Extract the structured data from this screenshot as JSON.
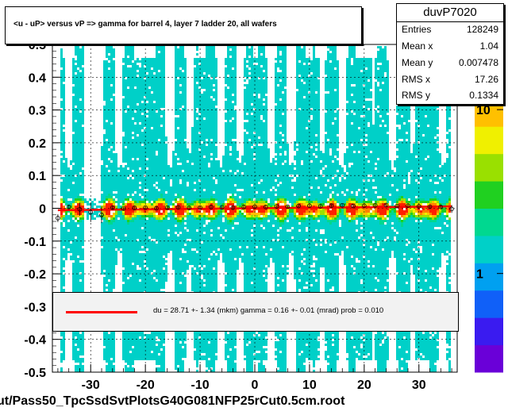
{
  "title": "<u - uP>       versus   vP =>  gamma for barrel 4, layer 7 ladder 20, all wafers",
  "stats": {
    "name": "duvP7020",
    "rows": [
      {
        "key": "Entries",
        "value": "128249"
      },
      {
        "key": "Mean x",
        "value": "1.04"
      },
      {
        "key": "Mean y",
        "value": "0.007478"
      },
      {
        "key": "RMS x",
        "value": "17.26"
      },
      {
        "key": "RMS y",
        "value": "0.1334"
      }
    ]
  },
  "legend": {
    "text": "du =   28.71 +-  1.34 (mkm) gamma =    0.16 +-  0.01 (mrad) prob = 0.010",
    "line_color": "#ff0000"
  },
  "footer": "ut/Pass50_TpcSsdSvtPlotsG40G081NFP25rCut0.5cm.root",
  "colors": {
    "background": "#ffffff",
    "fit_line": "#ff0000",
    "profile_markers": "#000000",
    "palette": [
      "#6a00d8",
      "#3a1bf0",
      "#1060f8",
      "#00a0f0",
      "#00d0c8",
      "#00d890",
      "#20d020",
      "#9ae000",
      "#f0f000",
      "#ffc000",
      "#ff8000",
      "#ff2000"
    ]
  },
  "chart_data": {
    "type": "heatmap",
    "x_axis": {
      "range": [
        -37,
        37
      ],
      "ticks": [
        -30,
        -20,
        -10,
        0,
        10,
        20,
        30
      ]
    },
    "y_axis": {
      "range": [
        -0.5,
        0.5
      ],
      "ticks": [
        -0.5,
        -0.4,
        -0.3,
        -0.2,
        -0.1,
        0,
        0.1,
        0.2,
        0.3,
        0.4,
        0.5
      ],
      "tick_labels": [
        "-0.5",
        "-0.4",
        "-0.3",
        "-0.2",
        "-0.1",
        "0",
        "0.1",
        "0.2",
        "0.3",
        "0.4",
        "0.5"
      ]
    },
    "z_axis": {
      "scale": "log",
      "tick_labels": [
        "1",
        "10"
      ],
      "tick_values": [
        1,
        10
      ],
      "range": [
        0.25,
        25
      ]
    },
    "grid": true,
    "gaps_x": [
      [
        -31.5,
        -28.5
      ]
    ],
    "fit": {
      "gamma_mrad": 0.16,
      "du_mkm": 28.71,
      "slope": 0.00016,
      "intercept": 0.0
    },
    "profile": {
      "x": [
        -36,
        -34,
        -32,
        -30,
        -28,
        -26,
        -24,
        -22,
        -20,
        -18,
        -16,
        -14,
        -12,
        -10,
        -8,
        -6,
        -4,
        -2,
        0,
        2,
        4,
        6,
        8,
        10,
        12,
        14,
        16,
        18,
        20,
        22,
        24,
        26,
        28,
        30,
        32,
        34,
        36
      ],
      "y": [
        -0.03,
        0.004,
        -0.003,
        -0.012,
        -0.02,
        0.002,
        -0.001,
        0.001,
        0.002,
        0.0,
        0.002,
        0.003,
        0.001,
        0.002,
        0.004,
        0.003,
        0.002,
        0.004,
        0.005,
        0.004,
        0.006,
        0.005,
        0.007,
        0.008,
        0.006,
        0.008,
        0.009,
        0.007,
        0.008,
        0.009,
        0.01,
        0.007,
        0.008,
        0.006,
        0.005,
        0.004,
        -0.002
      ],
      "err": [
        0.012,
        0.005,
        0.02,
        0.03,
        0.025,
        0.006,
        0.004,
        0.004,
        0.004,
        0.004,
        0.004,
        0.004,
        0.004,
        0.004,
        0.004,
        0.004,
        0.004,
        0.004,
        0.004,
        0.004,
        0.004,
        0.004,
        0.004,
        0.004,
        0.004,
        0.004,
        0.004,
        0.004,
        0.004,
        0.004,
        0.004,
        0.004,
        0.004,
        0.004,
        0.004,
        0.006,
        0.012
      ]
    }
  }
}
